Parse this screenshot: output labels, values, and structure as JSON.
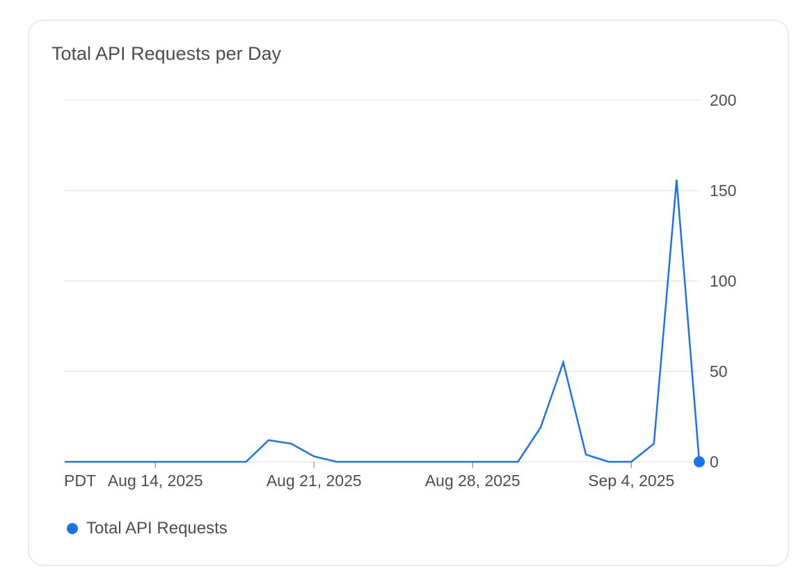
{
  "card": {
    "title": "Total API Requests per Day"
  },
  "chart_data": {
    "type": "line",
    "title": "Total API Requests per Day",
    "xlabel": "",
    "ylabel": "",
    "x": [
      "2025-08-10",
      "2025-08-11",
      "2025-08-12",
      "2025-08-13",
      "2025-08-14",
      "2025-08-15",
      "2025-08-16",
      "2025-08-17",
      "2025-08-18",
      "2025-08-19",
      "2025-08-20",
      "2025-08-21",
      "2025-08-22",
      "2025-08-23",
      "2025-08-24",
      "2025-08-25",
      "2025-08-26",
      "2025-08-27",
      "2025-08-28",
      "2025-08-29",
      "2025-08-30",
      "2025-08-31",
      "2025-09-01",
      "2025-09-02",
      "2025-09-03",
      "2025-09-04",
      "2025-09-05",
      "2025-09-06",
      "2025-09-07"
    ],
    "series": [
      {
        "name": "Total API Requests",
        "color": "#1a73e8",
        "values": [
          0,
          0,
          0,
          0,
          0,
          0,
          0,
          0,
          0,
          12,
          10,
          3,
          0,
          0,
          0,
          0,
          0,
          0,
          0,
          0,
          0,
          19,
          55,
          4,
          0,
          0,
          10,
          156,
          0
        ]
      }
    ],
    "ylim": [
      0,
      200
    ],
    "yticks": [
      0,
      50,
      100,
      150,
      200
    ],
    "ytick_labels": [
      "0",
      "50",
      "100",
      "150",
      "200"
    ],
    "timezone_label": "PDT",
    "xticks": [
      "2025-08-14",
      "2025-08-21",
      "2025-08-28",
      "2025-09-04"
    ],
    "xtick_labels": [
      "Aug 14, 2025",
      "Aug 21, 2025",
      "Aug 28, 2025",
      "Sep 4, 2025"
    ],
    "y_axis_position": "right",
    "grid": true,
    "legend_position": "bottom-left",
    "colors": {
      "grid": "#e8e9eb",
      "text": "#4a4d52",
      "line": "#1a73e8"
    }
  }
}
